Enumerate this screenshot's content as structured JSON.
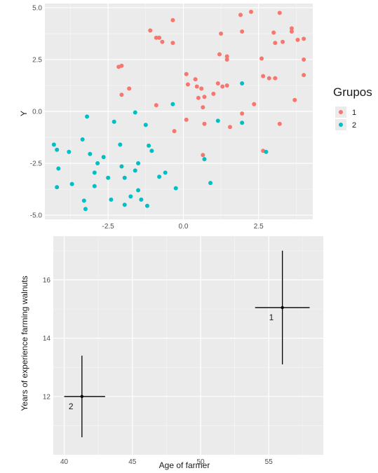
{
  "colors": {
    "panel_bg": "#ebebeb",
    "grid_major": "#ffffff",
    "group1": "#f8766d",
    "group2": "#00bfc4",
    "ink": "#000000"
  },
  "chart_data": [
    {
      "type": "scatter",
      "title": "",
      "xlabel": "",
      "ylabel": "Y",
      "xlim": [
        -4.6,
        4.3
      ],
      "ylim": [
        -5.2,
        5.2
      ],
      "x_ticks": [
        -2.5,
        0.0,
        2.5
      ],
      "x_tick_labels": [
        "-2.5",
        "0.0",
        "2.5"
      ],
      "y_ticks": [
        5.0,
        2.5,
        0.0,
        -2.5,
        -5.0
      ],
      "y_tick_labels": [
        "5.0",
        "2.5",
        "0.0",
        "-2.5",
        "-5.0"
      ],
      "grid": true,
      "legend": {
        "title": "Grupos",
        "position": "right"
      },
      "series": [
        {
          "name": "1",
          "color": "#f8766d",
          "points": [
            [
              -1.1,
              3.9
            ],
            [
              -0.35,
              4.4
            ],
            [
              -0.9,
              3.55
            ],
            [
              -0.8,
              3.55
            ],
            [
              -0.7,
              3.35
            ],
            [
              -0.35,
              3.3
            ],
            [
              1.9,
              4.65
            ],
            [
              2.25,
              4.8
            ],
            [
              3.2,
              4.75
            ],
            [
              3.6,
              4.0
            ],
            [
              3.6,
              3.85
            ],
            [
              4.0,
              3.5
            ],
            [
              3.8,
              3.45
            ],
            [
              3.3,
              3.35
            ],
            [
              3.05,
              3.3
            ],
            [
              3.0,
              3.8
            ],
            [
              1.95,
              3.85
            ],
            [
              1.25,
              3.75
            ],
            [
              1.45,
              2.5
            ],
            [
              1.45,
              2.65
            ],
            [
              1.2,
              2.75
            ],
            [
              2.6,
              2.55
            ],
            [
              2.65,
              1.7
            ],
            [
              2.85,
              1.6
            ],
            [
              3.05,
              1.6
            ],
            [
              4.0,
              1.75
            ],
            [
              4.0,
              2.5
            ],
            [
              3.7,
              0.55
            ],
            [
              -2.15,
              2.15
            ],
            [
              -2.05,
              2.2
            ],
            [
              -1.8,
              1.1
            ],
            [
              -2.05,
              0.8
            ],
            [
              0.1,
              1.8
            ],
            [
              0.15,
              1.3
            ],
            [
              0.4,
              1.55
            ],
            [
              0.45,
              1.2
            ],
            [
              0.6,
              1.1
            ],
            [
              0.5,
              0.65
            ],
            [
              0.7,
              0.7
            ],
            [
              0.65,
              0.2
            ],
            [
              0.7,
              -0.6
            ],
            [
              1.15,
              1.35
            ],
            [
              1.3,
              1.2
            ],
            [
              1.0,
              0.85
            ],
            [
              1.55,
              -0.75
            ],
            [
              1.45,
              1.25
            ],
            [
              2.35,
              0.35
            ],
            [
              2.65,
              -1.9
            ],
            [
              3.2,
              -0.6
            ],
            [
              1.95,
              -0.1
            ],
            [
              -0.9,
              0.3
            ],
            [
              -0.3,
              -0.95
            ],
            [
              0.1,
              -0.4
            ],
            [
              0.65,
              -2.1
            ]
          ]
        },
        {
          "name": "2",
          "color": "#00bfc4",
          "points": [
            [
              -4.3,
              -1.6
            ],
            [
              -4.2,
              -1.85
            ],
            [
              -4.15,
              -2.75
            ],
            [
              -4.2,
              -3.65
            ],
            [
              -3.8,
              -1.95
            ],
            [
              -3.7,
              -3.5
            ],
            [
              -3.35,
              -1.35
            ],
            [
              -3.3,
              -4.3
            ],
            [
              -3.25,
              -4.7
            ],
            [
              -3.1,
              -2.05
            ],
            [
              -2.95,
              -2.95
            ],
            [
              -2.85,
              -2.5
            ],
            [
              -2.65,
              -2.2
            ],
            [
              -2.5,
              -3.2
            ],
            [
              -2.95,
              -3.6
            ],
            [
              -3.2,
              -0.25
            ],
            [
              -2.4,
              -4.25
            ],
            [
              -2.3,
              -0.5
            ],
            [
              -2.1,
              -1.6
            ],
            [
              -1.95,
              -3.2
            ],
            [
              -1.95,
              -4.5
            ],
            [
              -2.05,
              -2.65
            ],
            [
              -1.6,
              -2.85
            ],
            [
              -1.75,
              -4.1
            ],
            [
              -1.5,
              -3.8
            ],
            [
              -1.4,
              -4.25
            ],
            [
              -1.5,
              -2.5
            ],
            [
              -1.2,
              -4.55
            ],
            [
              -1.15,
              -1.65
            ],
            [
              -1.05,
              -1.9
            ],
            [
              -0.6,
              -2.95
            ],
            [
              -0.8,
              -3.15
            ],
            [
              -0.25,
              -3.7
            ],
            [
              -0.35,
              0.35
            ],
            [
              -1.25,
              -0.65
            ],
            [
              -1.6,
              -0.05
            ],
            [
              0.7,
              -2.3
            ],
            [
              0.9,
              -3.45
            ],
            [
              1.15,
              -0.45
            ],
            [
              1.95,
              -0.55
            ],
            [
              1.95,
              1.35
            ],
            [
              2.75,
              -1.95
            ]
          ]
        }
      ]
    },
    {
      "type": "scatter",
      "title": "",
      "xlabel": "Age of farmer",
      "ylabel": "Years of experience farming walnuts",
      "xlim": [
        39.2,
        59.0
      ],
      "ylim": [
        10.0,
        17.5
      ],
      "x_ticks": [
        40,
        45,
        50,
        55
      ],
      "x_tick_labels": [
        "40",
        "45",
        "50",
        "55"
      ],
      "y_ticks": [
        12,
        14,
        16
      ],
      "y_tick_labels": [
        "12",
        "14",
        "16"
      ],
      "grid": true,
      "error_bars": true,
      "points": [
        {
          "label": "2",
          "x": 41.3,
          "y": 12.0,
          "x_err": [
            40.0,
            43.0
          ],
          "y_err": [
            10.6,
            13.4
          ]
        },
        {
          "label": "1",
          "x": 56.0,
          "y": 15.05,
          "x_err": [
            54.0,
            58.0
          ],
          "y_err": [
            13.1,
            17.0
          ]
        }
      ]
    }
  ]
}
